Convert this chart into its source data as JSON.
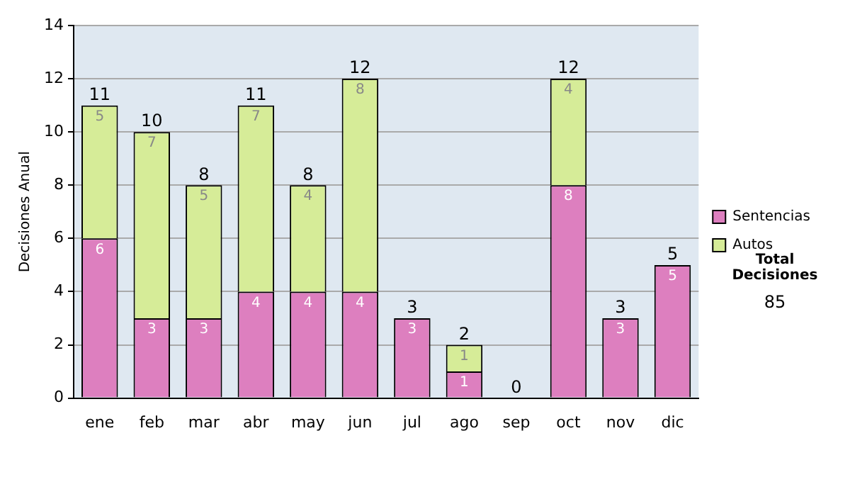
{
  "chart_data": {
    "type": "bar",
    "stacked": true,
    "ylabel": "Decisiones Anual",
    "categories": [
      "ene",
      "feb",
      "mar",
      "abr",
      "may",
      "jun",
      "jul",
      "ago",
      "sep",
      "oct",
      "nov",
      "dic"
    ],
    "series": [
      {
        "name": "Sentencias",
        "color": "#dd7fbf",
        "values": [
          6,
          3,
          3,
          4,
          4,
          4,
          3,
          1,
          0,
          8,
          3,
          5
        ],
        "value_labels": [
          "6",
          "3",
          "3",
          "4",
          "4",
          "4",
          "3",
          "1",
          null,
          "8",
          "3",
          "5"
        ]
      },
      {
        "name": "Autos",
        "color": "#d6ec98",
        "values": [
          5,
          7,
          5,
          7,
          4,
          8,
          0,
          1,
          0,
          4,
          0,
          0
        ],
        "value_labels": [
          "5",
          "7",
          "5",
          "7",
          "4",
          "8",
          null,
          "1",
          null,
          "4",
          null,
          null
        ]
      }
    ],
    "totals": [
      "11",
      "10",
      "8",
      "11",
      "8",
      "12",
      "3",
      "2",
      "0",
      "12",
      "3",
      "5"
    ],
    "ylim": [
      0,
      14
    ],
    "yticks": [
      0,
      2,
      4,
      6,
      8,
      10,
      12,
      14
    ],
    "grid": "y",
    "legend": "right",
    "annotations": [
      "Total Decisiones",
      "85"
    ]
  }
}
